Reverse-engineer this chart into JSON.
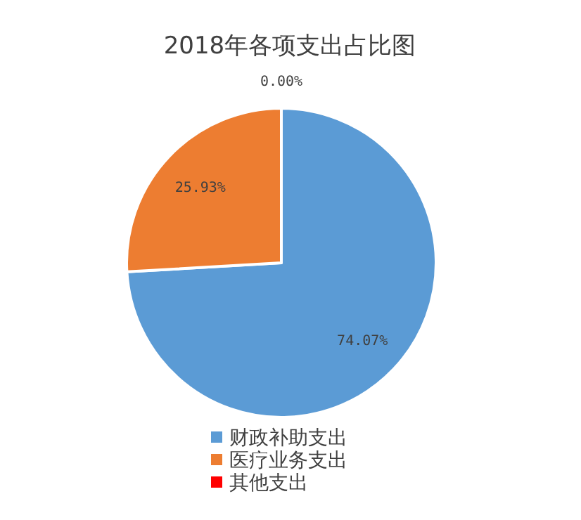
{
  "chart_data": {
    "type": "pie",
    "title": "2018年各项支出占比图",
    "categories": [
      "财政补助支出",
      "医疗业务支出",
      "其他支出"
    ],
    "values": [
      74.07,
      25.93,
      0.0
    ],
    "colors": [
      "#5b9bd5",
      "#ed7d31",
      "#ff0000"
    ],
    "value_labels": [
      "74.07%",
      "25.93%",
      "0.00%"
    ],
    "legend": "bottom"
  }
}
